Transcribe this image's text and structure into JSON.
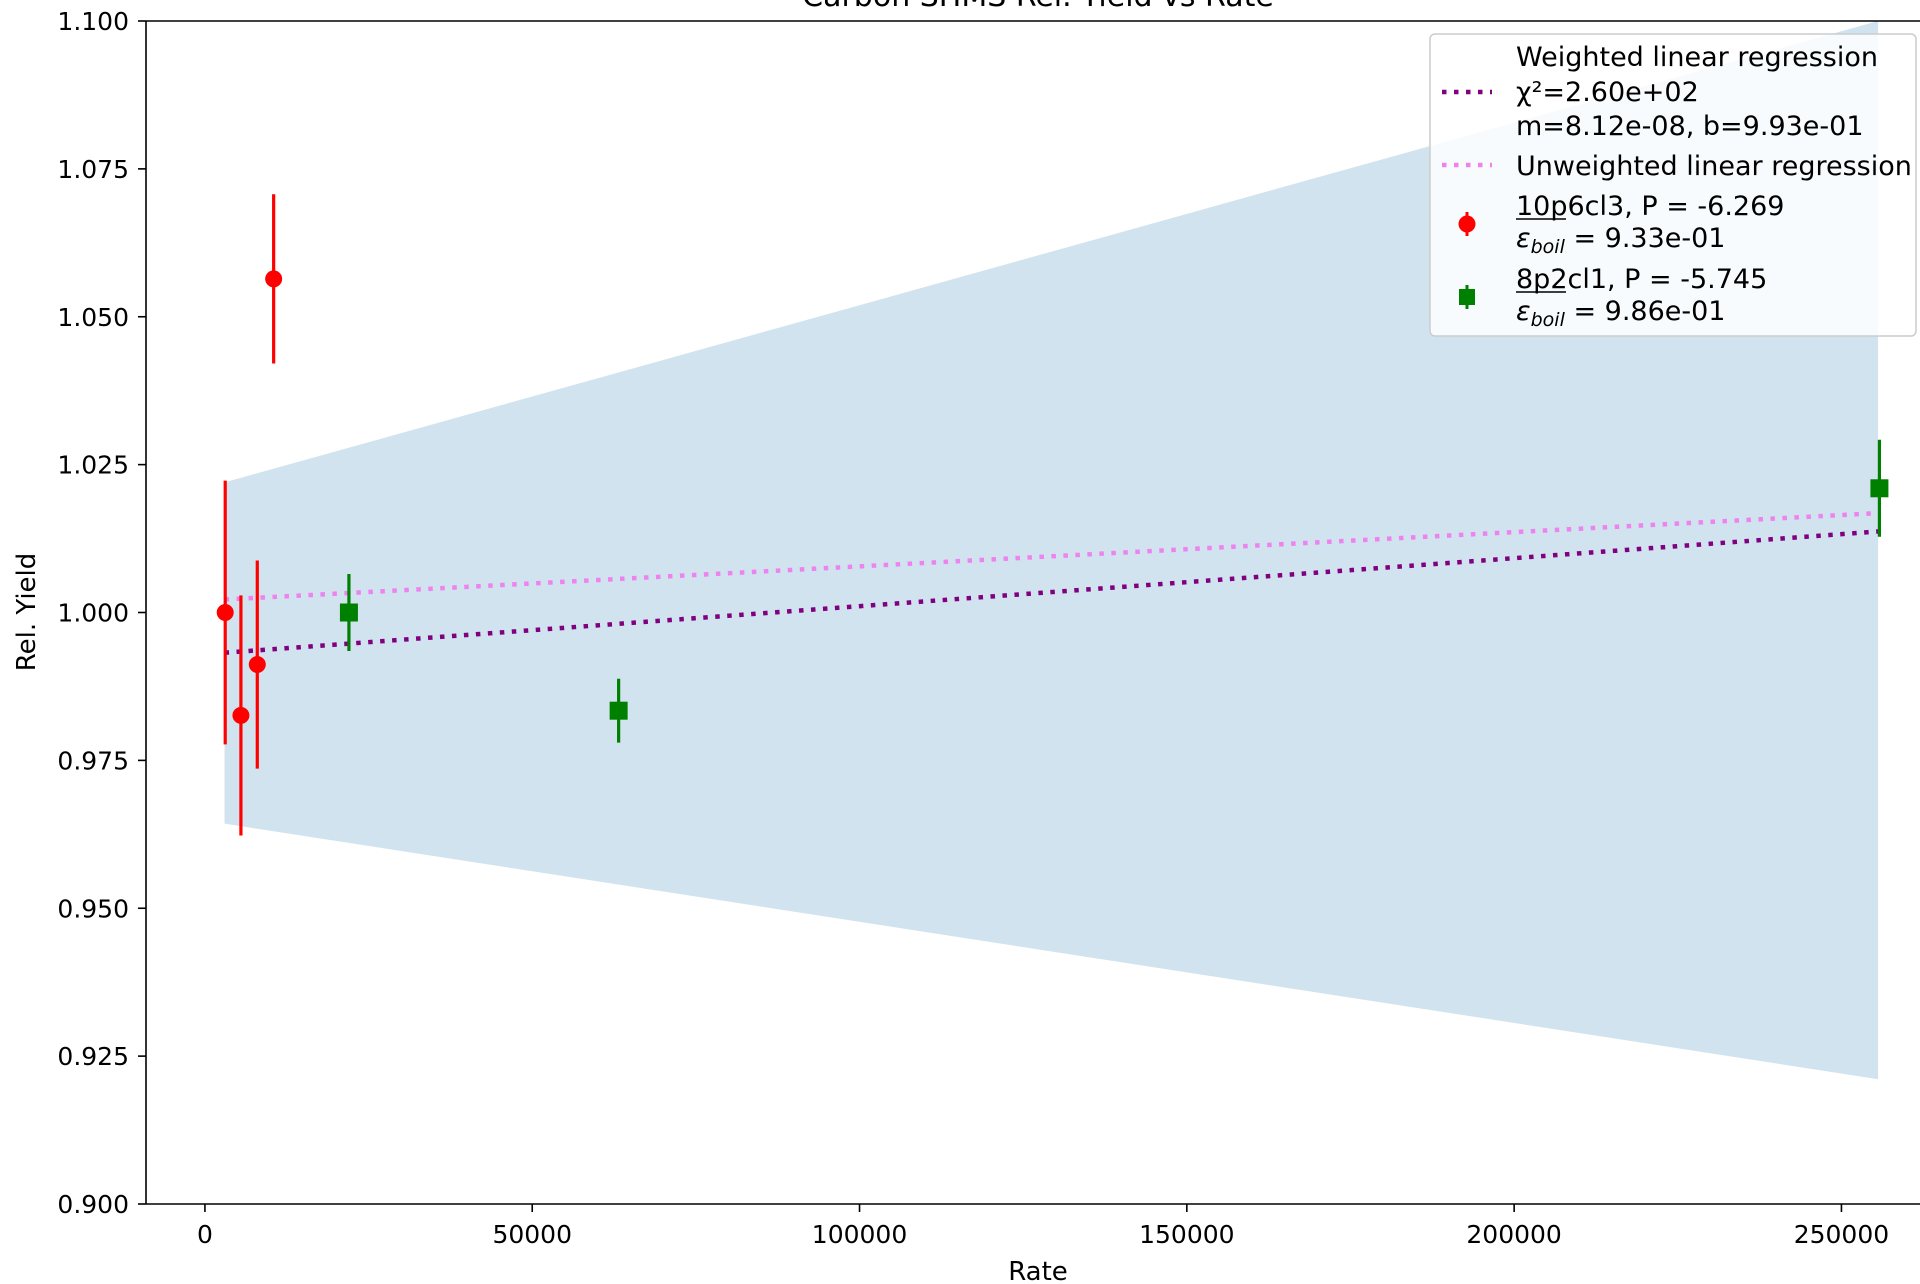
{
  "chart_data": {
    "type": "scatter",
    "title": "Carbon SHMS Rel. Yield vs Rate",
    "xlabel": "Rate",
    "ylabel": "Rel. Yield",
    "xlim": [
      -9000,
      262000
    ],
    "ylim": [
      0.9,
      1.1
    ],
    "x_ticks": [
      0,
      50000,
      100000,
      150000,
      200000,
      250000
    ],
    "x_tick_labels": [
      "0",
      "50000",
      "100000",
      "150000",
      "200000",
      "250000"
    ],
    "y_ticks": [
      0.9,
      0.925,
      0.95,
      0.975,
      1.0,
      1.025,
      1.05,
      1.075,
      1.1
    ],
    "y_tick_labels": [
      "0.900",
      "0.925",
      "0.950",
      "0.975",
      "1.000",
      "1.025",
      "1.050",
      "1.075",
      "1.100"
    ],
    "grid": false,
    "legend_position": "top-right",
    "confidence_band": {
      "color": "#d1e3ef",
      "points": [
        [
          3000,
          0.9643
        ],
        [
          3000,
          1.022
        ],
        [
          255600,
          1.1
        ],
        [
          255600,
          0.9211
        ]
      ]
    },
    "lines": [
      {
        "name": "Weighted linear regression",
        "legend_lines": [
          "Weighted linear regression",
          "χ²=2.60e+02",
          "m=8.12e-08, b=9.93e-01"
        ],
        "color": "#800080",
        "style": "dotted",
        "x": [
          3000,
          255600
        ],
        "y": [
          0.9932,
          1.0137
        ]
      },
      {
        "name": "Unweighted linear regression",
        "legend_lines": [
          "Unweighted linear regression"
        ],
        "color": "#ee82ee",
        "style": "dotted",
        "x": [
          3000,
          255600
        ],
        "y": [
          1.0022,
          1.0168
        ]
      }
    ],
    "series": [
      {
        "name": "10p6cl3, P = -6.269",
        "legend_lines": [
          "10p6cl3, P = -6.269",
          "ε_boil = 9.33e-01"
        ],
        "color": "#ff0000",
        "marker": "circle",
        "points": [
          {
            "x": 3100,
            "y": 1.0,
            "err": 0.0223
          },
          {
            "x": 5500,
            "y": 0.9826,
            "err": 0.0203
          },
          {
            "x": 8000,
            "y": 0.9912,
            "err": 0.0176
          },
          {
            "x": 10500,
            "y": 1.0564,
            "err": 0.0143
          }
        ]
      },
      {
        "name": "8p2cl1, P = -5.745",
        "legend_lines": [
          "8p2cl1, P = -5.745",
          "ε_boil = 9.86e-01"
        ],
        "color": "#008000",
        "marker": "square",
        "points": [
          {
            "x": 22000,
            "y": 1.0,
            "err": 0.0065
          },
          {
            "x": 63200,
            "y": 0.9834,
            "err": 0.0054
          },
          {
            "x": 255800,
            "y": 1.021,
            "err": 0.0082
          }
        ]
      }
    ]
  }
}
